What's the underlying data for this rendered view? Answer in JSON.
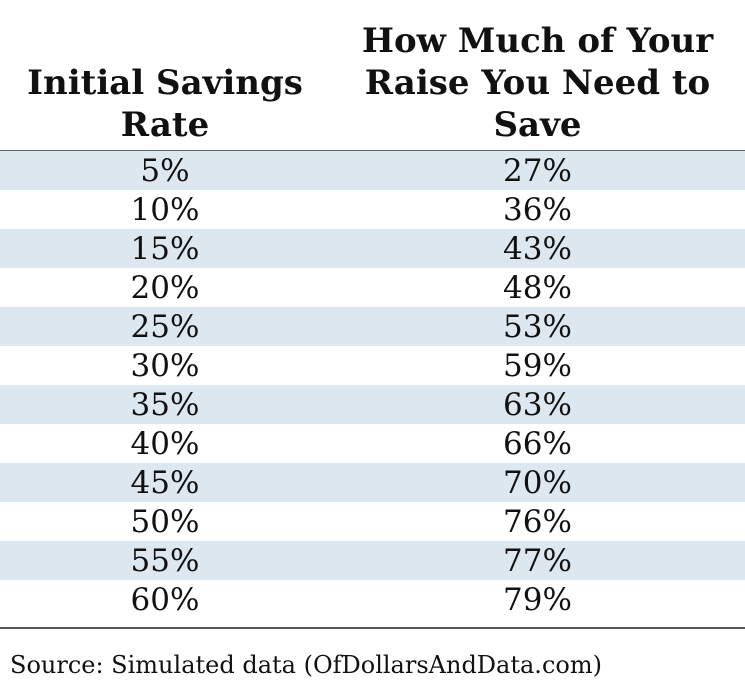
{
  "chart_data": {
    "type": "table",
    "columns": [
      "Initial Savings Rate",
      "How Much of Your Raise You Need to Save"
    ],
    "rows": [
      [
        "5%",
        "27%"
      ],
      [
        "10%",
        "36%"
      ],
      [
        "15%",
        "43%"
      ],
      [
        "20%",
        "48%"
      ],
      [
        "25%",
        "53%"
      ],
      [
        "30%",
        "59%"
      ],
      [
        "35%",
        "63%"
      ],
      [
        "40%",
        "66%"
      ],
      [
        "45%",
        "70%"
      ],
      [
        "50%",
        "76%"
      ],
      [
        "55%",
        "77%"
      ],
      [
        "60%",
        "79%"
      ]
    ],
    "source": "Source: Simulated data (OfDollarsAndData.com)",
    "colors": {
      "banded_row": "#dce7ef",
      "plain_row": "#ffffff",
      "text": "#111111"
    }
  }
}
